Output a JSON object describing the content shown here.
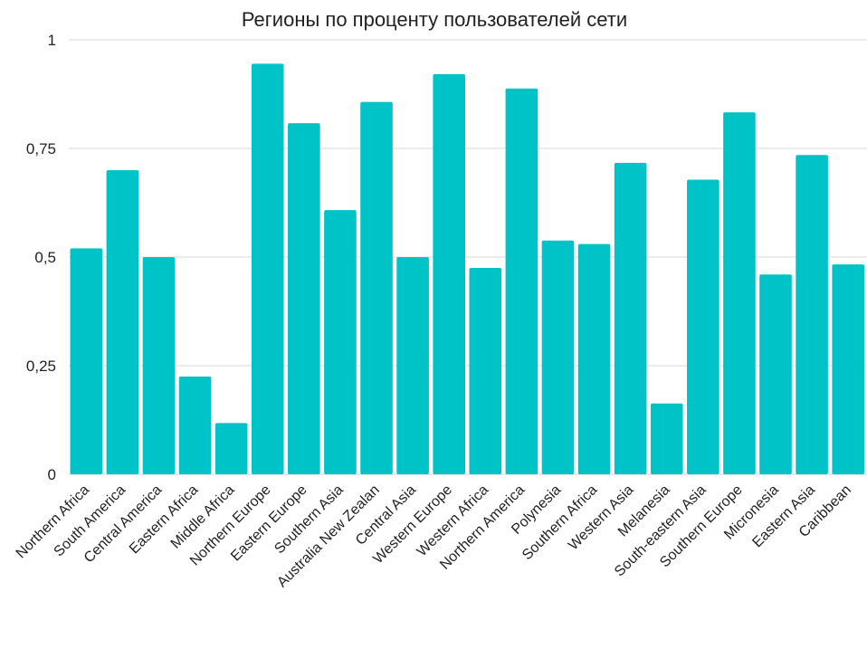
{
  "chart_data": {
    "type": "bar",
    "title": "Регионы по проценту пользователей сети",
    "xlabel": "",
    "ylabel": "",
    "ylim": [
      0,
      1
    ],
    "yticks": [
      0,
      0.25,
      0.5,
      0.75,
      1
    ],
    "ytick_labels": [
      "0",
      "0,25",
      "0,5",
      "0,75",
      "1"
    ],
    "grid": true,
    "legend": "none",
    "bar_color": "#00c3c8",
    "categories": [
      "Northern Africa",
      "South America",
      "Central America",
      "Eastern Africa",
      "Middle Africa",
      "Northern Europe",
      "Eastern Europe",
      "Southern Asia",
      "Australia New Zealan",
      "Central Asia",
      "Western Europe",
      "Western Africa",
      "Northern America",
      "Polynesia",
      "Southern Africa",
      "Western Asia",
      "Melanesia",
      "South-eastern Asia",
      "Southern Europe",
      "Micronesia",
      "Eastern Asia",
      "Caribbean"
    ],
    "values": [
      0.52,
      0.7,
      0.5,
      0.225,
      0.118,
      0.945,
      0.808,
      0.608,
      0.857,
      0.5,
      0.921,
      0.475,
      0.888,
      0.538,
      0.53,
      0.717,
      0.163,
      0.678,
      0.833,
      0.46,
      0.735,
      0.483
    ]
  }
}
